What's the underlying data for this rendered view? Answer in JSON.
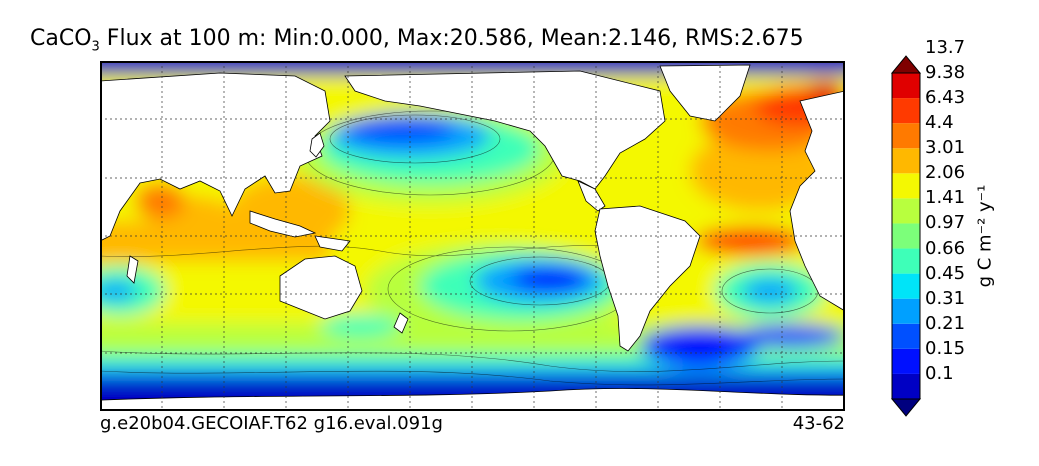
{
  "title": {
    "species_main": "CaCO",
    "species_sub": "3",
    "rest": " Flux at 100 m: Min:0.000, Max:20.586, Mean:2.146, RMS:2.675"
  },
  "footer": {
    "case_name": "g.e20b04.GECOIAF.T62 g16.eval.091g",
    "years": "43-62"
  },
  "colorbar": {
    "units": "g C m⁻² y⁻¹",
    "labels": [
      "0.1",
      "0.15",
      "0.21",
      "0.31",
      "0.45",
      "0.66",
      "0.97",
      "1.41",
      "2.06",
      "3.01",
      "4.4",
      "6.43",
      "9.38",
      "13.7"
    ],
    "colors": [
      "#00007f",
      "#0000c4",
      "#0010ff",
      "#0050ff",
      "#00a0ff",
      "#00e4f8",
      "#3effb8",
      "#7cff7a",
      "#b8ff3e",
      "#f4f802",
      "#ffb800",
      "#ff7a00",
      "#ff3a00",
      "#e00000",
      "#7f0000"
    ]
  },
  "map": {
    "land_color": "#ffffff",
    "grid_style": "dotted"
  }
}
